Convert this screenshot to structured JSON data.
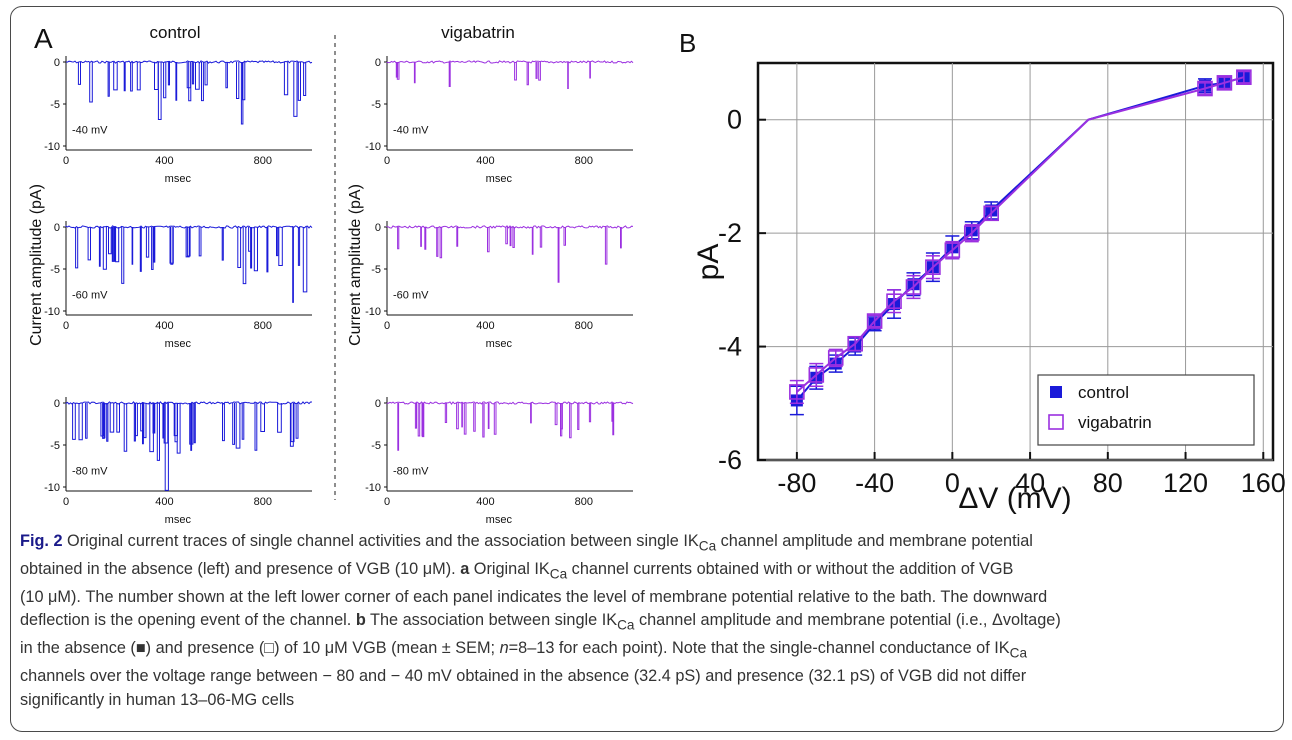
{
  "panel_a": {
    "label": "A",
    "col_titles": [
      "control",
      "vigabatrin"
    ],
    "y_axis_label": "Current amplitude (pA)",
    "x_axis_label": "msec",
    "x_ticks": [
      "0",
      "400",
      "800"
    ],
    "y_ticks": [
      "0",
      "-5",
      "-10"
    ],
    "voltages": [
      "-40 mV",
      "-60 mV",
      "-80 mV"
    ],
    "colors": {
      "control": "#1a1ad9",
      "vigabatrin": "#9b30e0"
    }
  },
  "chart_data": {
    "type": "line",
    "panel_label": "B",
    "xlabel": "ΔV (mV)",
    "ylabel": "pA",
    "xlim": [
      -100,
      165
    ],
    "ylim": [
      -6,
      1
    ],
    "x_ticks": [
      "-80",
      "-40",
      "0",
      "40",
      "80",
      "120",
      "160"
    ],
    "y_ticks": [
      "0",
      "-2",
      "-4",
      "-6"
    ],
    "grid": true,
    "legend_position": "bottom-right",
    "x": [
      -80,
      -70,
      -60,
      -50,
      -40,
      -30,
      -20,
      -10,
      0,
      10,
      20,
      70,
      130,
      140,
      150
    ],
    "series": [
      {
        "name": "control",
        "marker": "filled-square",
        "color": "#1a1ad9",
        "values": [
          -4.95,
          -4.55,
          -4.3,
          -4.0,
          -3.6,
          -3.25,
          -2.9,
          -2.6,
          -2.25,
          -1.95,
          -1.6,
          0.0,
          0.6,
          0.65,
          0.75
        ],
        "sem": [
          0.25,
          0.2,
          0.15,
          0.15,
          0.12,
          0.25,
          0.2,
          0.25,
          0.2,
          0.15,
          0.15,
          0.0,
          0.12,
          0.1,
          0.12
        ]
      },
      {
        "name": "vigabatrin",
        "marker": "open-square",
        "color": "#9b30e0",
        "values": [
          -4.8,
          -4.5,
          -4.2,
          -3.95,
          -3.55,
          -3.2,
          -2.95,
          -2.6,
          -2.3,
          -2.0,
          -1.65,
          0.0,
          0.55,
          0.65,
          0.75
        ],
        "sem": [
          0.2,
          0.2,
          0.15,
          0.12,
          0.1,
          0.2,
          0.2,
          0.2,
          0.15,
          0.15,
          0.12,
          0.0,
          0.1,
          0.1,
          0.1
        ]
      }
    ]
  },
  "caption": {
    "fig_label": "Fig. 2",
    "line1_text": " Original current traces of single channel activities and the association between single IK",
    "line1_tail": " channel amplitude and membrane potential",
    "line2_text": "obtained in the absence (left) and presence of VGB (10 μM). ",
    "line2_bold": "a",
    "line2_mid": " Original IK",
    "line2_tail": " channel currents obtained with or without the addition of VGB",
    "line3": "(10 μM). The number shown at the left lower corner of each panel indicates the level of membrane potential relative to the bath. The downward",
    "line4_text": "deflection is the opening event of the channel. ",
    "line4_bold": "b",
    "line4_mid": " The association between single IK",
    "line4_tail": " channel amplitude and membrane potential (i.e., Δvoltage)",
    "line5_text": "in the absence (■) and presence (□) of 10 μM VGB (mean ± SEM; ",
    "line5_n": "n",
    "line5_tail": "=8–13 for each point). Note that the single-channel conductance of IK",
    "line6_text": "channels over the voltage range between − 80 and − 40 mV obtained in the absence (32.4 pS) and presence (32.1 pS) of VGB did not differ",
    "line7": "significantly in human 13–06-MG cells",
    "subscript": "Ca"
  }
}
